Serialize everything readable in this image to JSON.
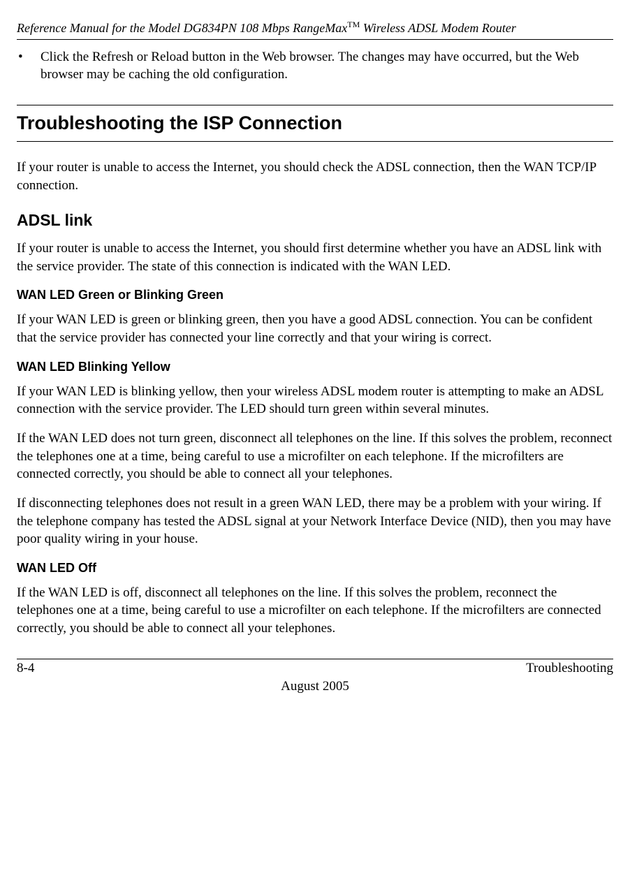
{
  "header": {
    "running_title_prefix": "Reference Manual for the Model DG834PN 108 Mbps RangeMax",
    "tm": "TM",
    "running_title_suffix": " Wireless ADSL Modem Router"
  },
  "bullet": {
    "marker": "•",
    "text": "Click the Refresh or Reload button in the Web browser. The changes may have occurred, but the Web browser may be caching the old configuration."
  },
  "section": {
    "title": "Troubleshooting the ISP Connection",
    "intro": "If your router is unable to access the Internet, you should check the ADSL connection, then the WAN TCP/IP connection."
  },
  "adsl": {
    "heading": "ADSL link",
    "intro": "If your router is unable to access the Internet, you should first determine whether you have an ADSL link with the service provider. The state of this connection is indicated with the WAN LED.",
    "green": {
      "heading": "WAN LED Green or Blinking Green",
      "p1": "If your WAN LED is green or blinking green, then you have a good ADSL connection. You can be confident that the service provider has connected your line correctly and that your wiring is correct."
    },
    "yellow": {
      "heading": "WAN LED Blinking Yellow",
      "p1": "If your WAN LED is blinking yellow, then your wireless ADSL modem router is attempting to make an ADSL connection with the service provider. The LED should turn green within several minutes.",
      "p2": "If the WAN LED does not turn green, disconnect all telephones on the line. If this solves the problem, reconnect the telephones one at a time, being careful to use a microfilter on each telephone. If the microfilters are connected correctly, you should be able to connect all your telephones.",
      "p3": "If disconnecting telephones does not result in a green WAN LED, there may be a problem with your wiring. If the telephone company has tested the ADSL signal at your Network Interface Device (NID), then you may have poor quality wiring in your house."
    },
    "off": {
      "heading": "WAN LED Off",
      "p1": "If the WAN LED is off, disconnect all telephones on the line. If this solves the problem, reconnect the telephones one at a time, being careful to use a microfilter on each telephone. If the microfilters are connected correctly, you should be able to connect all your telephones."
    }
  },
  "footer": {
    "page_num": "8-4",
    "chapter": "Troubleshooting",
    "date": "August 2005"
  }
}
